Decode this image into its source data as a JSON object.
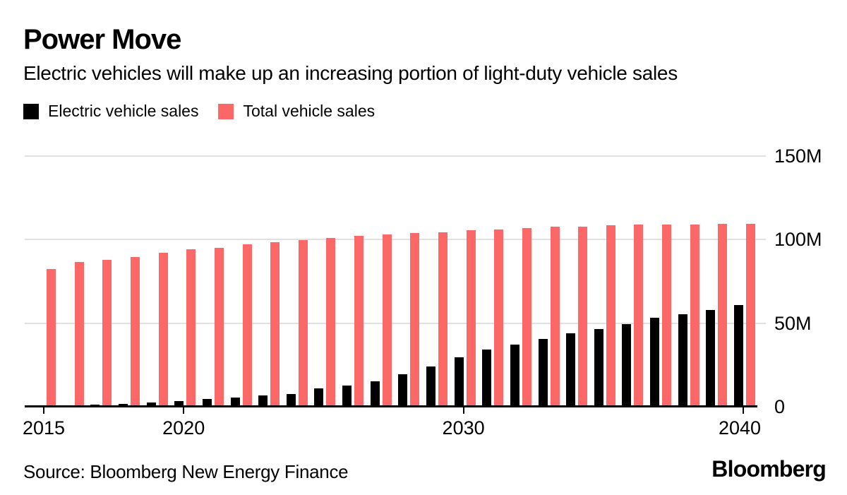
{
  "header": {
    "title": "Power Move",
    "subtitle": "Electric vehicles will make up an increasing portion of light-duty vehicle sales"
  },
  "legend": {
    "items": [
      {
        "label": "Electric vehicle sales",
        "color": "#000000"
      },
      {
        "label": "Total vehicle sales",
        "color": "#fc6868"
      }
    ]
  },
  "footer": {
    "source": "Source: Bloomberg New Energy Finance",
    "logo": "Bloomberg"
  },
  "colors": {
    "ev_bar": "#000000",
    "total_bar": "#fc6868",
    "gridline": "#e0e0e0",
    "axis": "#000000",
    "background": "#ffffff"
  },
  "chart_data": {
    "type": "bar",
    "title": "Power Move",
    "subtitle": "Electric vehicles will make up an increasing portion of light-duty vehicle sales",
    "categories": [
      2015,
      2016,
      2017,
      2018,
      2019,
      2020,
      2021,
      2022,
      2023,
      2024,
      2025,
      2026,
      2027,
      2028,
      2029,
      2030,
      2031,
      2032,
      2033,
      2034,
      2035,
      2036,
      2037,
      2038,
      2039,
      2040
    ],
    "series": [
      {
        "name": "Electric vehicle sales",
        "color": "#000000",
        "values": [
          0.3,
          0.7,
          1.1,
          1.8,
          2.7,
          3.5,
          4.5,
          5.5,
          6.7,
          7.8,
          11.0,
          12.6,
          15.2,
          19.4,
          24.0,
          29.4,
          34.0,
          37.3,
          40.5,
          44.0,
          46.3,
          49.5,
          53.0,
          55.5,
          58.0,
          61.0
        ]
      },
      {
        "name": "Total vehicle sales",
        "color": "#fc6868",
        "values": [
          82.5,
          86.5,
          88.0,
          89.5,
          92.0,
          94.0,
          95.0,
          97.0,
          98.5,
          99.5,
          101.0,
          102.0,
          103.0,
          104.0,
          104.5,
          105.5,
          106.0,
          107.0,
          107.5,
          107.5,
          108.5,
          109.0,
          109.0,
          109.0,
          109.5,
          109.5
        ]
      }
    ],
    "unit": "millions of vehicles per year",
    "ylim": [
      0,
      150
    ],
    "yticks": [
      {
        "value": 0,
        "label": "0"
      },
      {
        "value": 50,
        "label": "50M"
      },
      {
        "value": 100,
        "label": "100M"
      },
      {
        "value": 150,
        "label": "150M"
      }
    ],
    "xtick_years": [
      2015,
      2020,
      2030,
      2040
    ],
    "grid": true,
    "legend_position": "top-left",
    "value_axis_side": "right",
    "source": "Source: Bloomberg New Energy Finance"
  }
}
